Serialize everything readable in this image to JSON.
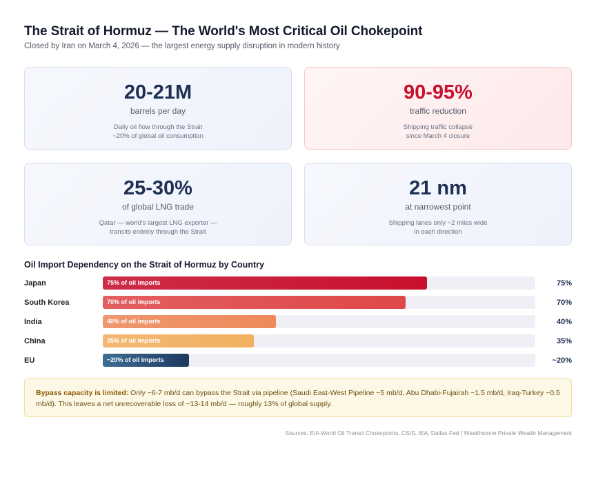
{
  "header": {
    "title": "The Strait of Hormuz — The World's Most Critical Oil Chokepoint",
    "subtitle": "Closed by Iran on March 4, 2026 — the largest energy supply disruption in modern history"
  },
  "cards": [
    {
      "value": "20-21M",
      "unit": "barrels per day",
      "desc_line1": "Daily oil flow through the Strait",
      "desc_line2": "~20% of global oil consumption"
    },
    {
      "value": "90-95%",
      "unit": "traffic reduction",
      "desc_line1": "Shipping traffic collapse",
      "desc_line2": "since March 4 closure"
    },
    {
      "value": "25-30%",
      "unit": "of global LNG trade",
      "desc_line1": "Qatar — world's largest LNG exporter —",
      "desc_line2": "transits entirely through the Strait"
    },
    {
      "value": "21 nm",
      "unit": "at narrowest point",
      "desc_line1": "Shipping lanes only ~2 miles wide",
      "desc_line2": "in each direction"
    }
  ],
  "chart_data": {
    "type": "bar",
    "orientation": "horizontal",
    "title": "Oil Import Dependency on the Strait of Hormuz by Country",
    "categories": [
      "Japan",
      "South Korea",
      "India",
      "China",
      "EU"
    ],
    "values": [
      75,
      70,
      40,
      35,
      20
    ],
    "value_labels": [
      "75%",
      "70%",
      "40%",
      "35%",
      "~20%"
    ],
    "bar_labels": [
      "75% of oil imports",
      "70% of oil imports",
      "40% of oil imports",
      "35% of oil imports",
      "~20% of oil imports"
    ],
    "colors": [
      "#c8102e",
      "#e04848",
      "#ee8a5a",
      "#f2b060",
      "#1d3a5f"
    ],
    "xlim": [
      0,
      100
    ]
  },
  "note": {
    "lead": "Bypass capacity is limited:",
    "text": " Only ~6-7 mb/d can bypass the Strait via pipeline (Saudi East-West Pipeline ~5 mb/d, Abu Dhabi-Fujairah ~1.5 mb/d, Iraq-Turkey ~0.5 mb/d). This leaves a net unrecoverable loss of ~13-14 mb/d — roughly 13% of global supply."
  },
  "sources": "Sources: EIA World Oil Transit Chokepoints, CSIS, IEA, Dallas Fed | Wealthstone Private Wealth Management"
}
